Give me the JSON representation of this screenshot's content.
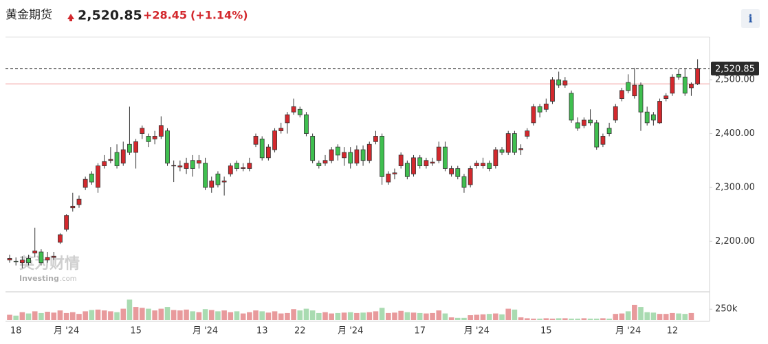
{
  "header": {
    "title": "黄金期货",
    "price": "2,520.85",
    "change": "+28.45",
    "change_pct": "(+1.14%)",
    "info": "i"
  },
  "watermark": {
    "cn": "英为财情",
    "en": "Investing",
    "suffix": ".com"
  },
  "chart_data": {
    "type": "candlestick",
    "categories": [
      null,
      "18",
      null,
      null,
      null,
      null,
      null,
      null,
      null,
      "月 '24",
      null,
      null,
      null,
      null,
      null,
      null,
      null,
      null,
      null,
      null,
      "15",
      null,
      null,
      null,
      null,
      null,
      null,
      null,
      null,
      null,
      null,
      "月 '24",
      null,
      null,
      null,
      null,
      null,
      null,
      null,
      null,
      "13",
      null,
      null,
      null,
      null,
      null,
      "22",
      null,
      null,
      null,
      null,
      null,
      null,
      null,
      "月 '24",
      null,
      null,
      null,
      null,
      null,
      null,
      null,
      null,
      null,
      null,
      "17",
      null,
      null,
      null,
      null,
      null,
      null,
      null,
      null,
      "月 '24",
      null,
      null,
      null,
      null,
      null,
      null,
      null,
      null,
      null,
      null,
      "15",
      null,
      null,
      null,
      null,
      null,
      null,
      null,
      null,
      null,
      null,
      null,
      null,
      "月 '24",
      null,
      null,
      null,
      null,
      null,
      null,
      "12",
      null,
      null,
      null,
      null
    ],
    "open": [
      2165,
      2163,
      2160,
      2168,
      2178,
      2180,
      2165,
      2170,
      2198,
      2222,
      2262,
      2268,
      2300,
      2325,
      2300,
      2340,
      2350,
      2365,
      2345,
      2380,
      2365,
      2400,
      2395,
      2390,
      2395,
      2405,
      2340,
      2338,
      2335,
      2350,
      2345,
      2345,
      2300,
      2325,
      2310,
      2325,
      2345,
      2335,
      2335,
      2380,
      2390,
      2355,
      2370,
      2405,
      2420,
      2440,
      2445,
      2435,
      2395,
      2345,
      2345,
      2350,
      2375,
      2355,
      2365,
      2345,
      2370,
      2350,
      2385,
      2395,
      2310,
      2325,
      2340,
      2345,
      2325,
      2355,
      2340,
      2345,
      2350,
      2375,
      2325,
      2335,
      2320,
      2305,
      2340,
      2340,
      2345,
      2340,
      2370,
      2365,
      2400,
      2370,
      2395,
      2420,
      2450,
      2445,
      2460,
      2500,
      2490,
      2475,
      2420,
      2415,
      2425,
      2420,
      2380,
      2410,
      2425,
      2465,
      2495,
      2470,
      2490,
      2440,
      2435,
      2420,
      2465,
      2475,
      2510,
      2505,
      2485,
      2492.4
    ],
    "high": [
      2175,
      2170,
      2172,
      2175,
      2225,
      2185,
      2180,
      2180,
      2215,
      2250,
      2290,
      2285,
      2320,
      2330,
      2345,
      2360,
      2375,
      2380,
      2385,
      2450,
      2390,
      2415,
      2400,
      2405,
      2432,
      2410,
      2350,
      2350,
      2355,
      2360,
      2360,
      2355,
      2320,
      2330,
      2320,
      2345,
      2350,
      2345,
      2355,
      2400,
      2395,
      2380,
      2410,
      2420,
      2440,
      2465,
      2450,
      2440,
      2400,
      2350,
      2360,
      2375,
      2380,
      2375,
      2375,
      2378,
      2378,
      2385,
      2405,
      2400,
      2330,
      2335,
      2365,
      2350,
      2360,
      2360,
      2355,
      2355,
      2385,
      2385,
      2340,
      2340,
      2325,
      2340,
      2350,
      2355,
      2350,
      2375,
      2375,
      2405,
      2405,
      2380,
      2410,
      2455,
      2455,
      2465,
      2505,
      2515,
      2505,
      2480,
      2430,
      2430,
      2445,
      2425,
      2400,
      2420,
      2455,
      2485,
      2510,
      2522,
      2495,
      2450,
      2440,
      2465,
      2475,
      2510,
      2520,
      2520,
      2495,
      2538
    ],
    "low": [
      2160,
      2155,
      2150,
      2155,
      2170,
      2155,
      2160,
      2165,
      2195,
      2218,
      2255,
      2262,
      2295,
      2305,
      2290,
      2335,
      2345,
      2335,
      2340,
      2360,
      2335,
      2390,
      2375,
      2380,
      2390,
      2340,
      2310,
      2330,
      2325,
      2320,
      2335,
      2295,
      2290,
      2300,
      2285,
      2320,
      2330,
      2330,
      2330,
      2375,
      2350,
      2350,
      2365,
      2400,
      2400,
      2435,
      2430,
      2395,
      2345,
      2335,
      2340,
      2345,
      2350,
      2340,
      2335,
      2340,
      2340,
      2345,
      2380,
      2305,
      2305,
      2315,
      2335,
      2315,
      2320,
      2335,
      2335,
      2340,
      2345,
      2330,
      2320,
      2315,
      2290,
      2300,
      2335,
      2335,
      2330,
      2335,
      2360,
      2360,
      2360,
      2360,
      2390,
      2415,
      2430,
      2440,
      2455,
      2485,
      2485,
      2420,
      2405,
      2410,
      2415,
      2370,
      2375,
      2395,
      2420,
      2460,
      2475,
      2465,
      2405,
      2415,
      2415,
      2418,
      2460,
      2470,
      2500,
      2470,
      2470,
      2490
    ],
    "close": [
      2168,
      2162,
      2165,
      2160,
      2182,
      2160,
      2170,
      2172,
      2212,
      2248,
      2265,
      2278,
      2315,
      2310,
      2340,
      2348,
      2352,
      2340,
      2370,
      2365,
      2385,
      2410,
      2385,
      2395,
      2415,
      2345,
      2341,
      2340,
      2345,
      2335,
      2350,
      2300,
      2312,
      2305,
      2312,
      2340,
      2335,
      2337,
      2345,
      2395,
      2355,
      2375,
      2405,
      2410,
      2435,
      2450,
      2435,
      2400,
      2350,
      2340,
      2350,
      2370,
      2360,
      2365,
      2345,
      2370,
      2350,
      2380,
      2395,
      2320,
      2325,
      2327,
      2360,
      2320,
      2355,
      2340,
      2350,
      2347,
      2375,
      2335,
      2335,
      2320,
      2300,
      2335,
      2345,
      2345,
      2335,
      2370,
      2365,
      2400,
      2365,
      2372,
      2405,
      2450,
      2440,
      2455,
      2500,
      2490,
      2498,
      2425,
      2410,
      2425,
      2420,
      2375,
      2395,
      2400,
      2450,
      2480,
      2480,
      2490,
      2440,
      2420,
      2425,
      2460,
      2470,
      2505,
      2505,
      2475,
      2492,
      2520.85
    ],
    "volume": [
      120000,
      100000,
      180000,
      150000,
      200000,
      160000,
      190000,
      170000,
      220000,
      160000,
      180000,
      140000,
      200000,
      230000,
      240000,
      220000,
      200000,
      180000,
      260000,
      470000,
      300000,
      280000,
      260000,
      220000,
      260000,
      300000,
      230000,
      220000,
      240000,
      200000,
      180000,
      250000,
      230000,
      200000,
      220000,
      180000,
      200000,
      150000,
      180000,
      220000,
      200000,
      170000,
      200000,
      150000,
      160000,
      250000,
      220000,
      260000,
      220000,
      160000,
      180000,
      150000,
      160000,
      170000,
      180000,
      160000,
      170000,
      180000,
      200000,
      280000,
      160000,
      170000,
      210000,
      180000,
      170000,
      160000,
      150000,
      160000,
      220000,
      150000,
      60000,
      50000,
      50000,
      110000,
      120000,
      130000,
      140000,
      150000,
      130000,
      260000,
      240000,
      60000,
      40000,
      30000,
      30000,
      40000,
      30000,
      40000,
      40000,
      30000,
      30000,
      40000,
      30000,
      30000,
      40000,
      30000,
      140000,
      150000,
      200000,
      350000,
      300000,
      180000,
      170000,
      140000,
      140000,
      160000,
      150000,
      140000,
      160000,
      null
    ],
    "up_color": "#d3282d",
    "down_color": "#3fbf4f",
    "volume_up_color": "#e89a9c",
    "volume_down_color": "#a9dbb1",
    "prev_close": 2492.4,
    "prev_close_color": "#f2a3a3",
    "last_price_label": "2,520.85",
    "ylim": [
      2106,
      2578
    ],
    "yticks": [
      {
        "value": 2200,
        "label": "2,200.00"
      },
      {
        "value": 2300,
        "label": "2,300.00"
      },
      {
        "value": 2400,
        "label": "2,400.00"
      },
      {
        "value": 2500,
        "label": "2,500.00"
      }
    ],
    "volume_ylim": [
      0,
      650000
    ],
    "volume_yticks": [
      {
        "value": 250000,
        "label": "250k"
      }
    ]
  }
}
